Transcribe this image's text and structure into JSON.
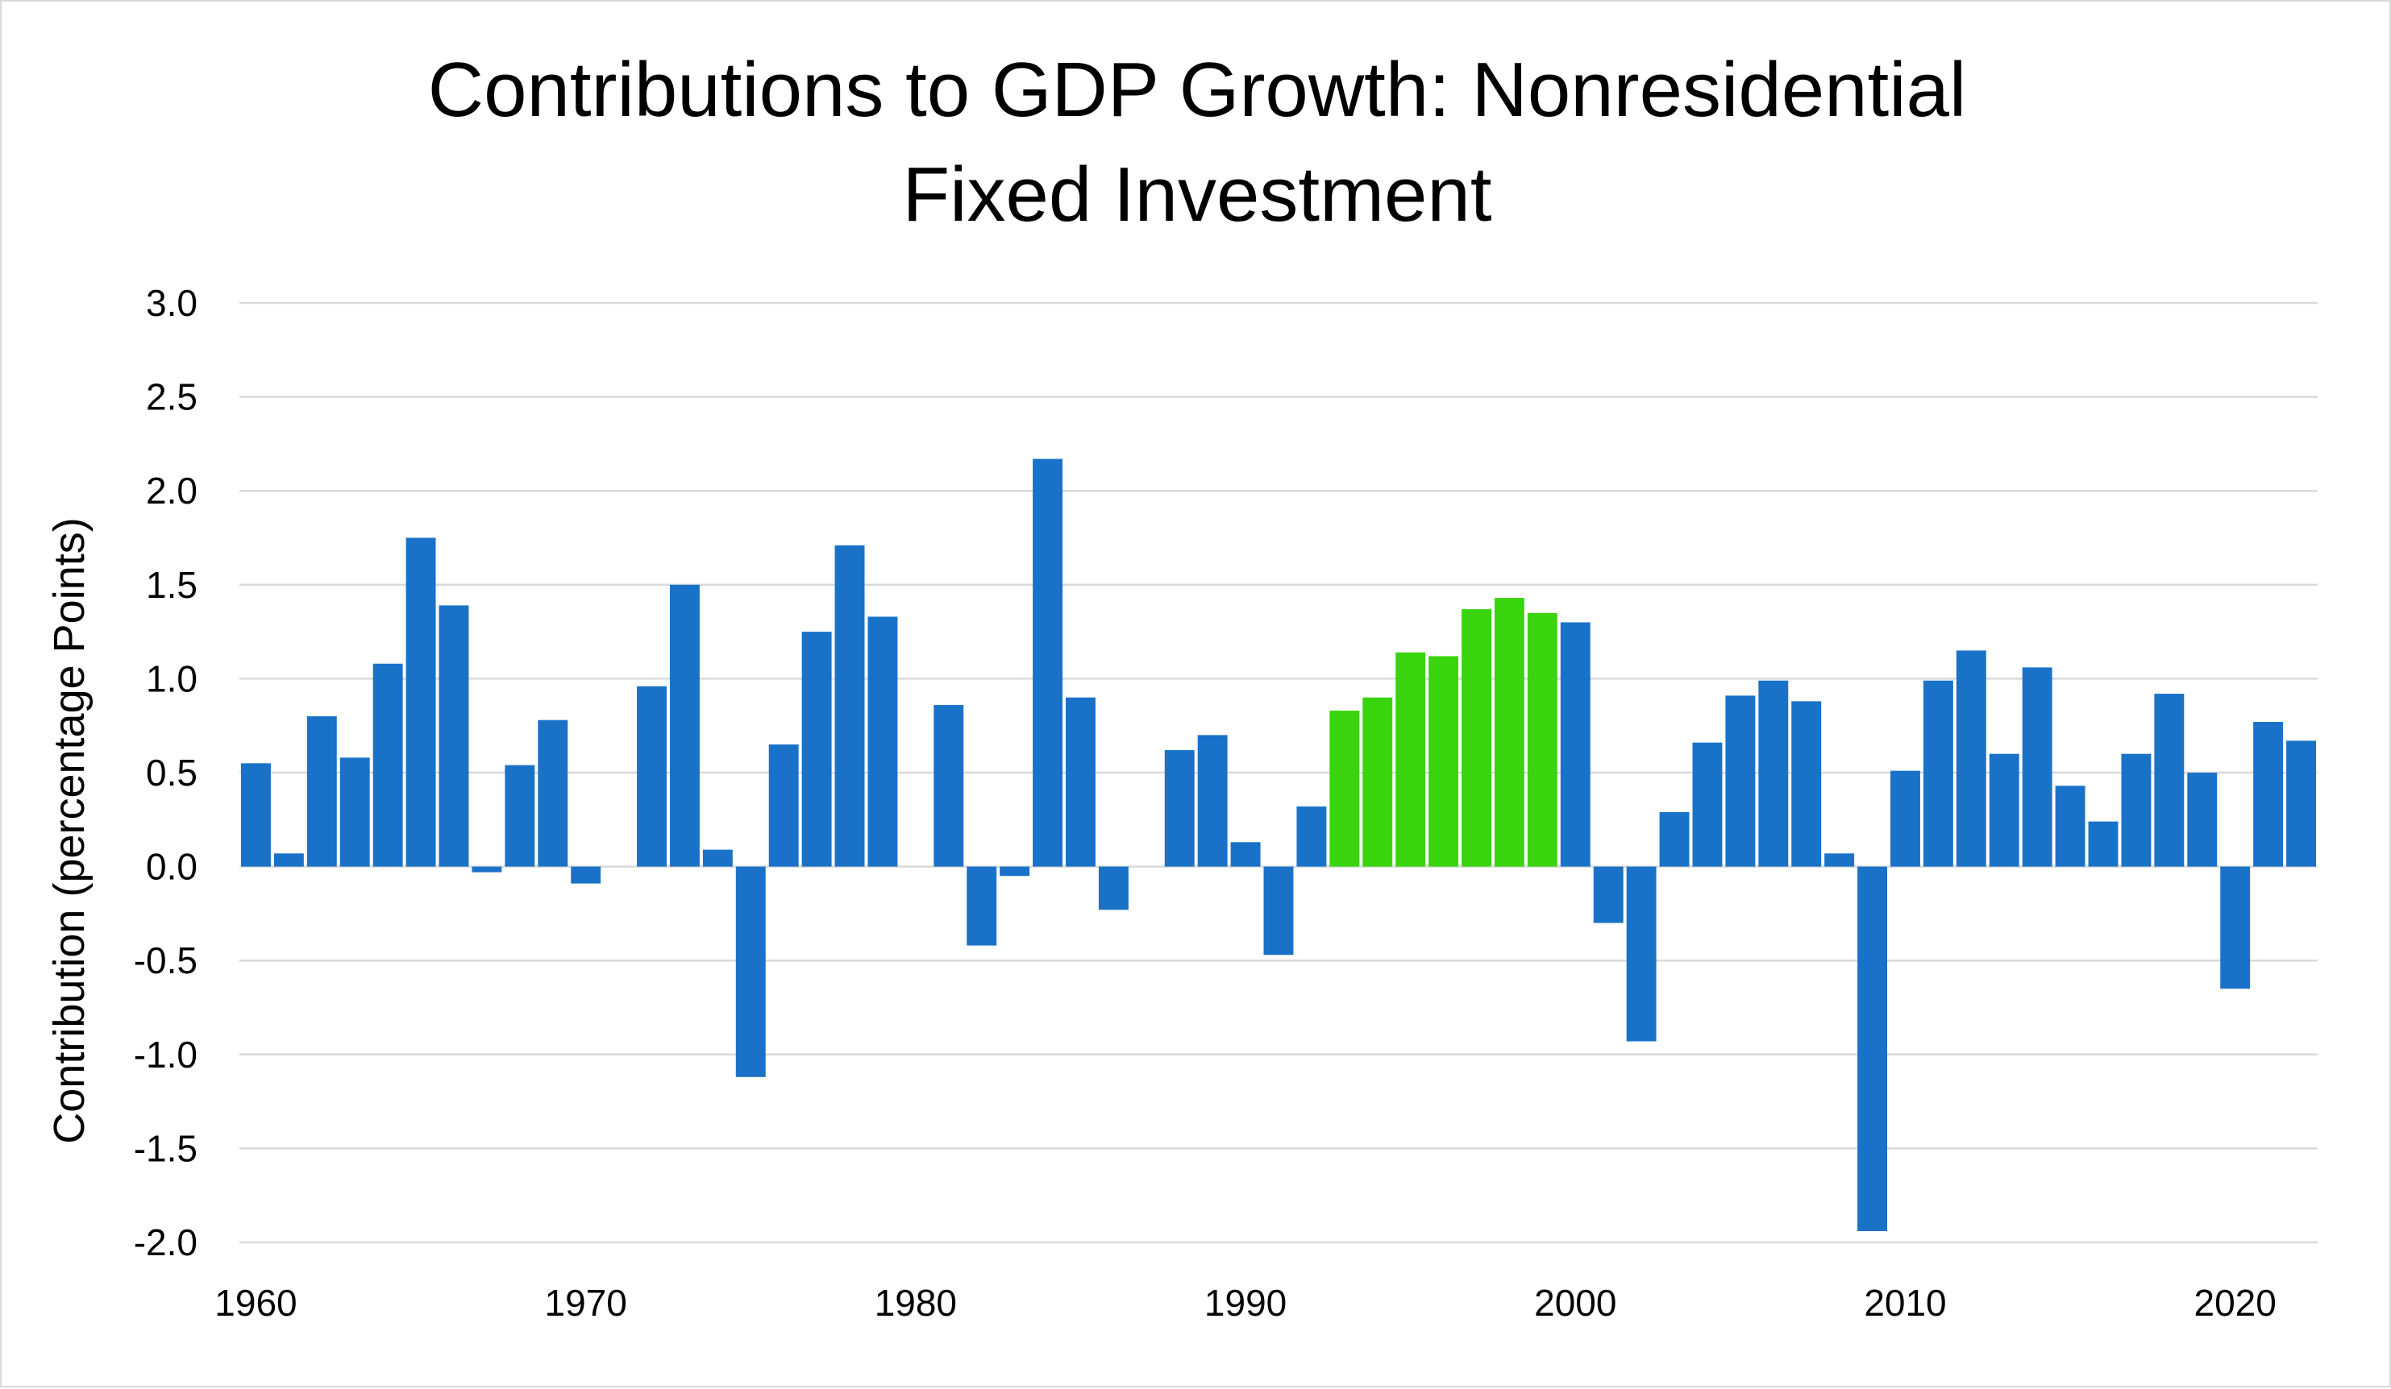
{
  "chart_data": {
    "type": "bar",
    "title": "Contributions to GDP Growth: Nonresidential Fixed Investment",
    "title_lines": [
      "Contributions to GDP Growth: Nonresidential",
      "Fixed Investment"
    ],
    "xlabel": "",
    "ylabel": "Contribution (percentage Points)",
    "ylim": [
      -2.0,
      3.0
    ],
    "y_ticks": [
      "3.0",
      "2.5",
      "2.0",
      "1.5",
      "1.0",
      "0.5",
      "0.0",
      "-0.5",
      "-1.0",
      "-1.5",
      "-2.0"
    ],
    "y_tick_values": [
      3.0,
      2.5,
      2.0,
      1.5,
      1.0,
      0.5,
      0.0,
      -0.5,
      -1.0,
      -1.5,
      -2.0
    ],
    "x_ticks": [
      "1960",
      "1970",
      "1980",
      "1990",
      "2000",
      "2010",
      "2020"
    ],
    "x_tick_values": [
      1960,
      1970,
      1980,
      1990,
      2000,
      2010,
      2020
    ],
    "grid": true,
    "legend": "none",
    "colors": {
      "default": "#1a72c8",
      "highlight": "#3ad40e"
    },
    "highlight_range": [
      1993,
      1999
    ],
    "categories": [
      1960,
      1961,
      1962,
      1963,
      1964,
      1965,
      1966,
      1967,
      1968,
      1969,
      1970,
      1971,
      1972,
      1973,
      1974,
      1975,
      1976,
      1977,
      1978,
      1979,
      1980,
      1981,
      1982,
      1983,
      1984,
      1985,
      1986,
      1987,
      1988,
      1989,
      1990,
      1991,
      1992,
      1993,
      1994,
      1995,
      1996,
      1997,
      1998,
      1999,
      2000,
      2001,
      2002,
      2003,
      2004,
      2005,
      2006,
      2007,
      2008,
      2009,
      2010,
      2011,
      2012,
      2013,
      2014,
      2015,
      2016,
      2017,
      2018,
      2019,
      2020,
      2021,
      2022
    ],
    "values": [
      0.55,
      0.07,
      0.8,
      0.58,
      1.08,
      1.75,
      1.39,
      -0.03,
      0.54,
      0.78,
      -0.09,
      0.0,
      0.96,
      1.5,
      0.09,
      -1.12,
      0.65,
      1.25,
      1.71,
      1.33,
      0.0,
      0.86,
      -0.42,
      -0.05,
      2.17,
      0.9,
      -0.23,
      0.0,
      0.62,
      0.7,
      0.13,
      -0.47,
      0.32,
      0.83,
      0.9,
      1.14,
      1.12,
      1.37,
      1.43,
      1.35,
      1.3,
      -0.3,
      -0.93,
      0.29,
      0.66,
      0.91,
      0.99,
      0.88,
      0.07,
      -1.94,
      0.51,
      0.99,
      1.15,
      0.6,
      1.06,
      0.43,
      0.24,
      0.6,
      0.92,
      0.5,
      -0.65,
      0.77,
      0.67
    ]
  }
}
